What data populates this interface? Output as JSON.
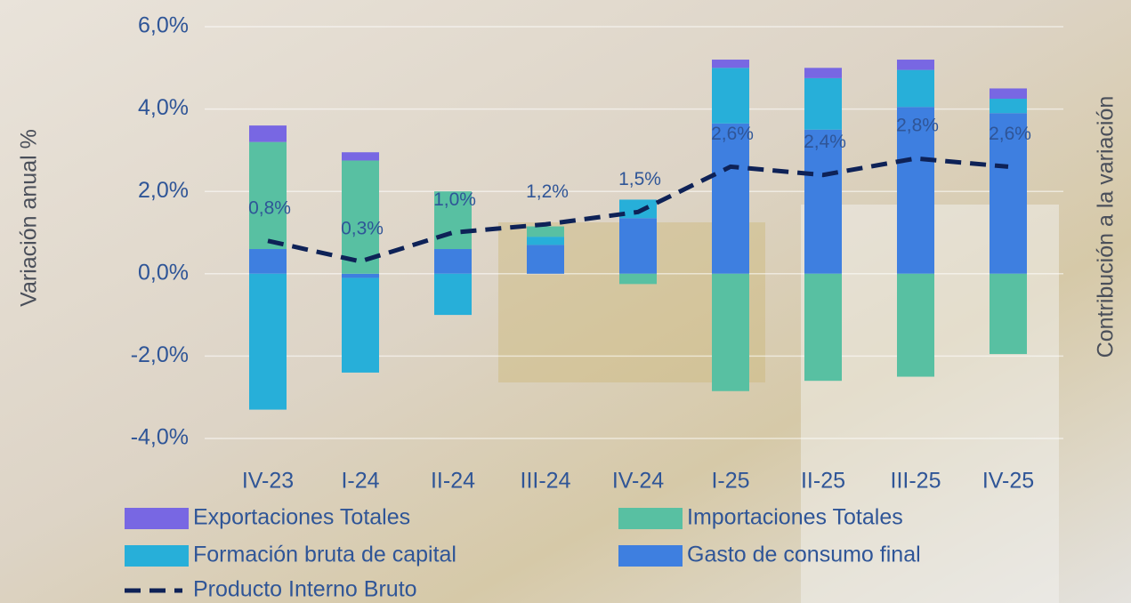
{
  "chart_data": {
    "type": "bar",
    "y_label": "Variación anual %",
    "y2_label": "Contribución a la variación",
    "categories": [
      "IV-23",
      "I-24",
      "II-24",
      "III-24",
      "IV-24",
      "I-25",
      "II-25",
      "III-25",
      "IV-25"
    ],
    "ylim": [
      -4,
      6
    ],
    "yticks": [
      {
        "value": -4,
        "label": "-4,0%"
      },
      {
        "value": -2,
        "label": "-2,0%"
      },
      {
        "value": 0,
        "label": "0,0%"
      },
      {
        "value": 2,
        "label": "2,0%"
      },
      {
        "value": 4,
        "label": "4,0%"
      },
      {
        "value": 6,
        "label": "6,0%"
      }
    ],
    "grid": true,
    "stacked": true,
    "series": [
      {
        "name": "Exportaciones  Totales",
        "color": "#7867e3",
        "values": [
          0.4,
          0.2,
          0,
          0,
          0,
          0.2,
          0.25,
          0.25,
          0.25
        ]
      },
      {
        "name": "Importaciones Totales",
        "color": "#58c0a2",
        "values": [
          2.6,
          2.75,
          1.4,
          0.25,
          -0.25,
          -2.85,
          -2.6,
          -2.5,
          -1.95
        ]
      },
      {
        "name": "Formación bruta de capital",
        "color": "#27afd9",
        "values": [
          -3.3,
          -2.3,
          -1.0,
          0.2,
          0.45,
          1.35,
          1.25,
          0.9,
          0.35
        ]
      },
      {
        "name": "Gasto de consumo final",
        "color": "#3e7fe0",
        "values": [
          0.6,
          -0.1,
          0.6,
          0.7,
          1.35,
          3.65,
          3.5,
          4.05,
          3.9
        ]
      },
      {
        "name": "Producto Interno Bruto",
        "type": "line",
        "color": "#0e2257",
        "values": [
          0.8,
          0.3,
          1.0,
          1.2,
          1.5,
          2.6,
          2.4,
          2.8,
          2.6
        ],
        "value_labels": [
          "0,8%",
          "0,3%",
          "1,0%",
          "1,2%",
          "1,5%",
          "2,6%",
          "2,4%",
          "2,8%",
          "2,6%"
        ]
      }
    ]
  }
}
